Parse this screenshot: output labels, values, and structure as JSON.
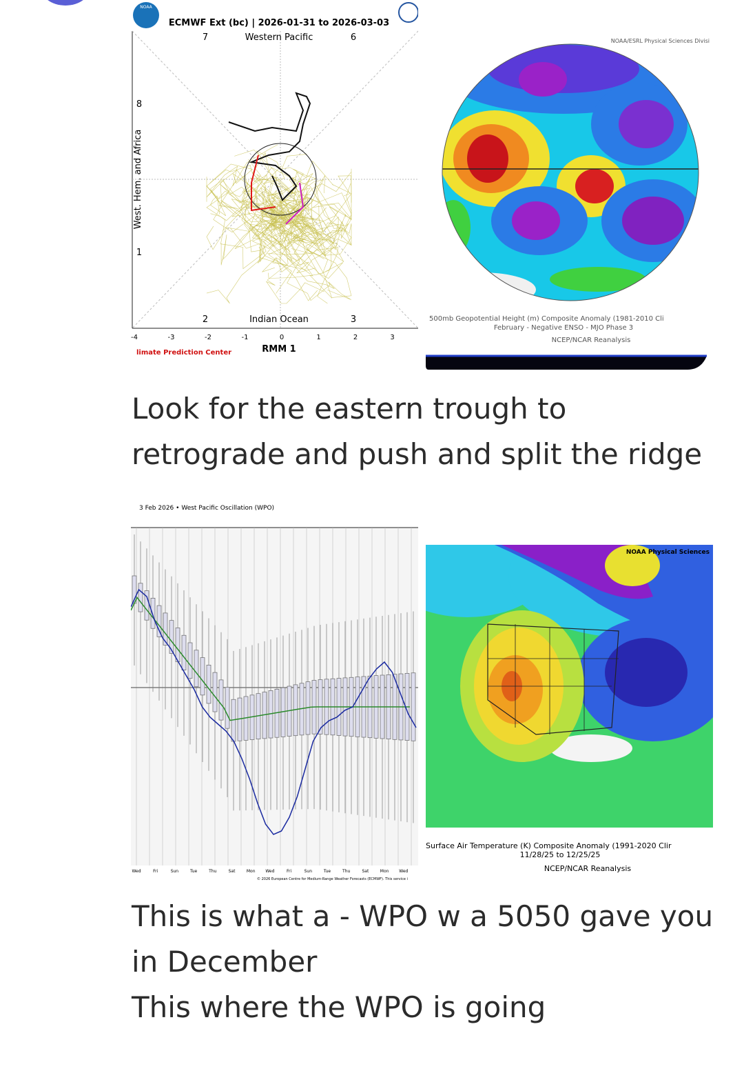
{
  "mjo": {
    "title": "ECMWF Ext (bc) | 2026-01-31 to 2026-03-03",
    "logo": "NOAA",
    "top_labels": [
      "7",
      "Western Pacific",
      "6"
    ],
    "bottom_labels": [
      "2",
      "Indian Ocean",
      "3"
    ],
    "left_labels": [
      "8",
      "1"
    ],
    "y_axis_label": "West. Hem. and Africa",
    "x_ticks": [
      "-4",
      "-3",
      "-2",
      "-1",
      "0",
      "1",
      "2",
      "3"
    ],
    "x_axis_label": "RMM 1",
    "credit": "limate Prediction Center"
  },
  "map1": {
    "credit": "NOAA/ESRL Physical Sciences Divisi",
    "caption": [
      "500mb Geopotential Height (m) Composite Anomaly (1981-2010 Cli",
      "February - Negative ENSO - MJO Phase 3",
      "NCEP/NCAR Reanalysis"
    ]
  },
  "text1": [
    "Look for the eastern trough to",
    "retrograde and push and split the ridge"
  ],
  "wpo": {
    "title": "3 Feb 2026 • West Pacific Oscillation (WPO)",
    "weekdays": [
      "Wed",
      "Fri",
      "Sun",
      "Tue",
      "Thu",
      "Sat",
      "Mon",
      "Wed",
      "Fri",
      "Sun",
      "Tue",
      "Thu",
      "Sat",
      "Mon",
      "Wed"
    ],
    "credit": "© 2026 European Centre for Medium-Range Weather Forecasts (ECMWF). This service i"
  },
  "map2": {
    "credit": "NOAA Physical Sciences",
    "caption": [
      "Surface Air Temperature (K) Composite Anomaly (1991-2020 Clir",
      "11/28/25  to  12/25/25",
      "NCEP/NCAR Reanalysis"
    ]
  },
  "text2": [
    "This is what a - WPO w a 5050 gave you",
    "in December",
    "This where the WPO is going"
  ]
}
